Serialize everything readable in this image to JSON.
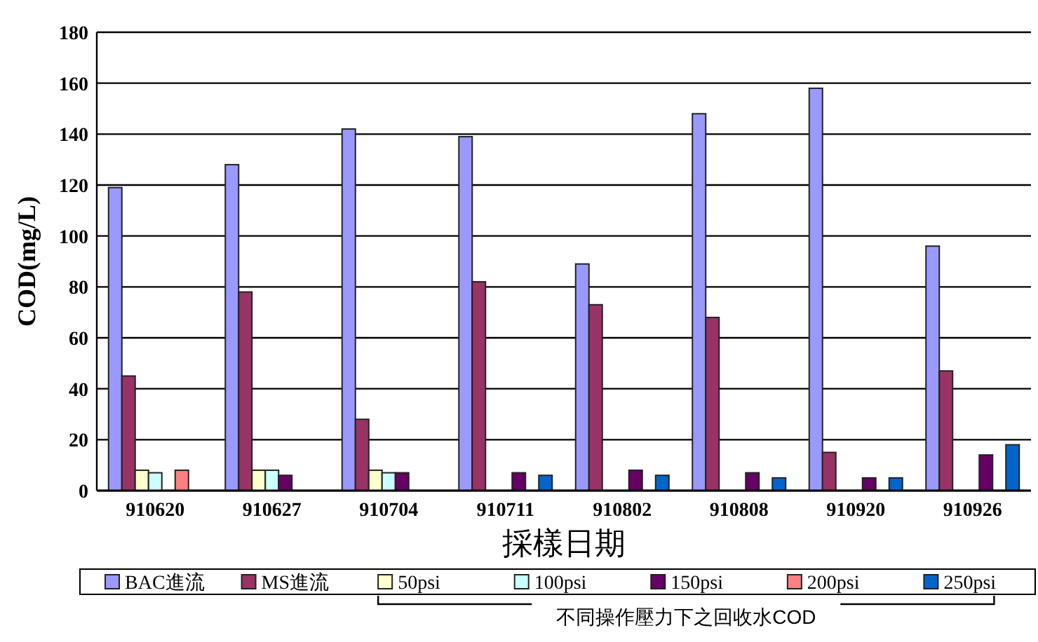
{
  "chart_data": {
    "type": "bar",
    "ylabel": "COD(mg/L)",
    "xlabel": "採樣日期",
    "categories": [
      "910620",
      "910627",
      "910704",
      "910711",
      "910802",
      "910808",
      "910920",
      "910926"
    ],
    "series": [
      {
        "name": "BAC進流",
        "color": "#9999ff",
        "values": [
          119,
          128,
          142,
          139,
          89,
          148,
          158,
          96
        ]
      },
      {
        "name": "MS進流",
        "color": "#993366",
        "values": [
          45,
          78,
          28,
          82,
          73,
          68,
          15,
          47
        ]
      },
      {
        "name": "50psi",
        "color": "#ffffcc",
        "values": [
          8,
          8,
          8,
          null,
          null,
          null,
          null,
          null
        ]
      },
      {
        "name": "100psi",
        "color": "#ccffff",
        "values": [
          7,
          8,
          7,
          null,
          null,
          null,
          null,
          null
        ]
      },
      {
        "name": "150psi",
        "color": "#660066",
        "values": [
          null,
          6,
          7,
          7,
          8,
          7,
          5,
          14
        ]
      },
      {
        "name": "200psi",
        "color": "#ff8080",
        "values": [
          8,
          null,
          null,
          null,
          null,
          null,
          null,
          null
        ]
      },
      {
        "name": "250psi",
        "color": "#0066cc",
        "values": [
          null,
          null,
          null,
          6,
          6,
          5,
          5,
          18
        ]
      }
    ],
    "ylim": [
      0,
      180
    ],
    "yticks": [
      0,
      20,
      40,
      60,
      80,
      100,
      120,
      140,
      160,
      180
    ],
    "grid": "y",
    "legend": "bottom",
    "annotations": [
      "不同操作壓力下之回收水COD"
    ]
  }
}
